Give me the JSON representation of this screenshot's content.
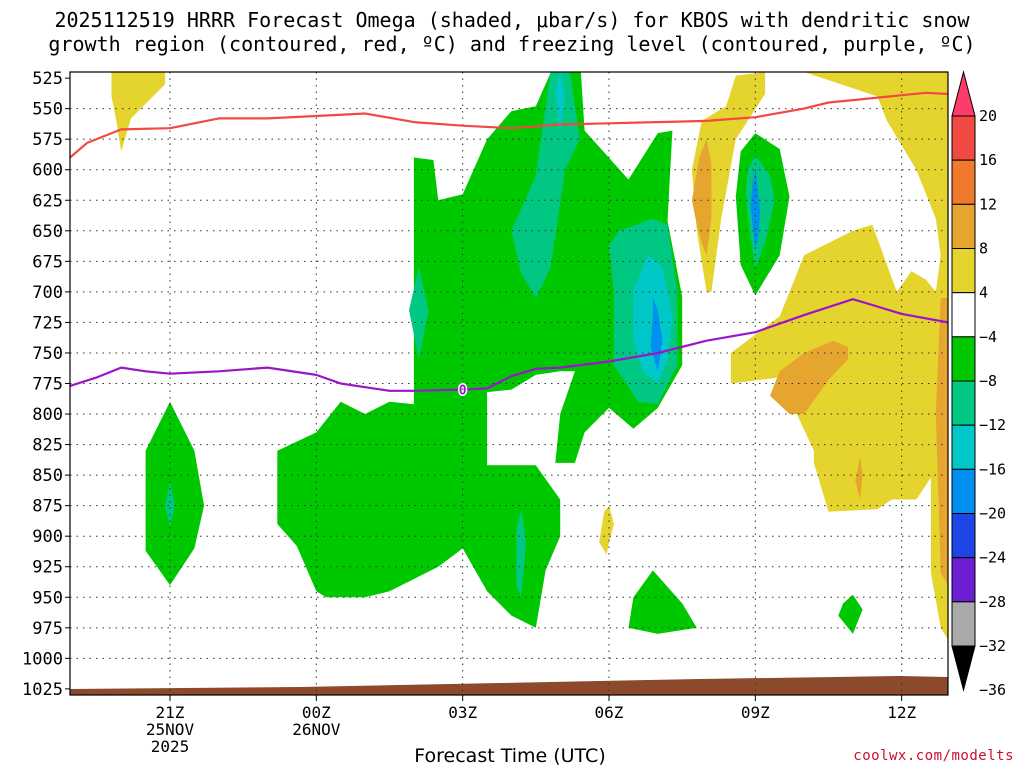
{
  "chart_data": {
    "type": "contour",
    "title_line1": "2025112519 HRRR Forecast Omega (shaded, μbar/s) for KBOS with dendritic snow",
    "title_line2": "growth region (contoured, red, ºC) and freezing level (contoured, purple, ºC)",
    "xlabel": "Forecast Time (UTC)",
    "y_ticks": [
      "525",
      "550",
      "575",
      "600",
      "625",
      "650",
      "675",
      "700",
      "725",
      "750",
      "775",
      "800",
      "825",
      "850",
      "875",
      "900",
      "925",
      "950",
      "975",
      "1000",
      "1025"
    ],
    "x_ticks": [
      {
        "hour": 2,
        "lines": [
          "21Z",
          "25NOV",
          "2025"
        ]
      },
      {
        "hour": 5,
        "lines": [
          "00Z",
          "26NOV"
        ]
      },
      {
        "hour": 8,
        "lines": [
          "03Z"
        ]
      },
      {
        "hour": 11,
        "lines": [
          "06Z"
        ]
      },
      {
        "hour": 14,
        "lines": [
          "09Z"
        ]
      },
      {
        "hour": 17,
        "lines": [
          "12Z"
        ]
      }
    ],
    "x_range": [
      -0.05,
      17.95
    ],
    "y_range": [
      520,
      1030
    ],
    "colorbar": {
      "labels": [
        "20",
        "16",
        "12",
        "8",
        "4",
        "−4",
        "−8",
        "−12",
        "−16",
        "−20",
        "−24",
        "−28",
        "−32",
        "−36"
      ],
      "colors": [
        "#ff3b6b",
        "#f04a42",
        "#f07a2c",
        "#e6a52e",
        "#e6d42e",
        "#ffffff",
        "#00c800",
        "#00c882",
        "#00c8c8",
        "#0091f0",
        "#1e46e6",
        "#6e1ed2",
        "#a00fc8",
        "#aaaaaa"
      ]
    },
    "dendritic_contour": {
      "label": "",
      "color": "#f04a42",
      "points": [
        [
          -0.05,
          590
        ],
        [
          0.3,
          578
        ],
        [
          1,
          567
        ],
        [
          2,
          566
        ],
        [
          2.5,
          562
        ],
        [
          3,
          558
        ],
        [
          3.5,
          558
        ],
        [
          4,
          558
        ],
        [
          5,
          556
        ],
        [
          6,
          554
        ],
        [
          7,
          561
        ],
        [
          8,
          564
        ],
        [
          9,
          566
        ],
        [
          10,
          563
        ],
        [
          11,
          562
        ],
        [
          12,
          561
        ],
        [
          13,
          560
        ],
        [
          14,
          557
        ],
        [
          15,
          550
        ],
        [
          15.5,
          545
        ],
        [
          16,
          543
        ],
        [
          17,
          539
        ],
        [
          17.5,
          537
        ],
        [
          17.95,
          538
        ]
      ]
    },
    "freezing_level": {
      "label": "0",
      "color": "#9a16c8",
      "points": [
        [
          -0.05,
          777
        ],
        [
          0.5,
          770
        ],
        [
          1,
          762
        ],
        [
          1.5,
          765
        ],
        [
          2,
          767
        ],
        [
          3,
          765
        ],
        [
          4,
          762
        ],
        [
          5,
          768
        ],
        [
          5.5,
          775
        ],
        [
          6,
          778
        ],
        [
          6.5,
          781
        ],
        [
          7,
          781
        ],
        [
          8,
          780
        ],
        [
          8.5,
          779
        ],
        [
          9,
          769
        ],
        [
          9.5,
          763
        ],
        [
          10,
          762
        ],
        [
          11,
          757
        ],
        [
          12,
          750
        ],
        [
          13,
          740
        ],
        [
          14,
          733
        ],
        [
          15,
          719
        ],
        [
          16,
          706
        ],
        [
          16.5,
          712
        ],
        [
          17,
          718
        ],
        [
          17.95,
          725
        ]
      ]
    },
    "terrain_color": "#8b4a2b",
    "omega_regions": [
      {
        "value": -6,
        "color": "#00c800",
        "points": [
          [
            2,
            790
          ],
          [
            2.5,
            830
          ],
          [
            2.7,
            875
          ],
          [
            2.5,
            910
          ],
          [
            2,
            940
          ],
          [
            1.5,
            912
          ],
          [
            1.5,
            875
          ],
          [
            1.5,
            830
          ]
        ]
      },
      {
        "value": -10,
        "color": "#00c882",
        "points": [
          [
            2,
            855
          ],
          [
            2.1,
            875
          ],
          [
            2,
            892
          ],
          [
            1.9,
            875
          ]
        ]
      },
      {
        "value": -6,
        "color": "#00c800",
        "points": [
          [
            4.2,
            830
          ],
          [
            5,
            815
          ],
          [
            5.5,
            790
          ],
          [
            6,
            800
          ],
          [
            6.5,
            790
          ],
          [
            7,
            792
          ],
          [
            7,
            590
          ],
          [
            7.4,
            592
          ],
          [
            7.5,
            625
          ],
          [
            8,
            620
          ],
          [
            8.5,
            575
          ],
          [
            9,
            552
          ],
          [
            9.5,
            548
          ],
          [
            9.9,
            512
          ],
          [
            10.4,
            505
          ],
          [
            10.5,
            568
          ],
          [
            11.4,
            608
          ],
          [
            12,
            570
          ],
          [
            12.3,
            568
          ],
          [
            12.2,
            642
          ],
          [
            12.5,
            704
          ],
          [
            12.5,
            760
          ],
          [
            12,
            795
          ],
          [
            11.5,
            812
          ],
          [
            11,
            795
          ],
          [
            10.5,
            815
          ],
          [
            10.3,
            840
          ],
          [
            9.9,
            840
          ],
          [
            10,
            800
          ],
          [
            10.3,
            765
          ],
          [
            10,
            765
          ],
          [
            9.5,
            768
          ],
          [
            9,
            780
          ],
          [
            8.5,
            782
          ],
          [
            8.5,
            842
          ],
          [
            9.5,
            842
          ],
          [
            10,
            870
          ],
          [
            10,
            900
          ],
          [
            9.7,
            928
          ],
          [
            9.5,
            975
          ],
          [
            9,
            965
          ],
          [
            8.5,
            945
          ],
          [
            8,
            910
          ],
          [
            7.5,
            925
          ],
          [
            7,
            935
          ],
          [
            6.5,
            945
          ],
          [
            6,
            950
          ],
          [
            5.2,
            950
          ],
          [
            5,
            945
          ],
          [
            4.6,
            908
          ],
          [
            4.2,
            890
          ]
        ]
      },
      {
        "value": -10,
        "color": "#00c882",
        "points": [
          [
            7.1,
            680
          ],
          [
            7.3,
            715
          ],
          [
            7.1,
            755
          ],
          [
            6.9,
            715
          ]
        ]
      },
      {
        "value": -10,
        "color": "#00c882",
        "points": [
          [
            9,
            650
          ],
          [
            9.5,
            605
          ],
          [
            9.8,
            520
          ],
          [
            10.2,
            520
          ],
          [
            10.4,
            575
          ],
          [
            10.1,
            600
          ],
          [
            9.8,
            680
          ],
          [
            9.5,
            705
          ],
          [
            9.2,
            685
          ]
        ]
      },
      {
        "value": -14,
        "color": "#00c8c8",
        "points": [
          [
            9.9,
            535
          ],
          [
            10,
            520
          ],
          [
            10.1,
            540
          ],
          [
            10,
            570
          ]
        ]
      },
      {
        "value": -10,
        "color": "#00c882",
        "points": [
          [
            11,
            662
          ],
          [
            11.2,
            650
          ],
          [
            11.9,
            640
          ],
          [
            12.2,
            645
          ],
          [
            12.4,
            700
          ],
          [
            12.4,
            760
          ],
          [
            12,
            792
          ],
          [
            11.6,
            790
          ],
          [
            11.1,
            760
          ],
          [
            11.1,
            700
          ]
        ]
      },
      {
        "value": -14,
        "color": "#00c8c8",
        "points": [
          [
            11.5,
            700
          ],
          [
            11.8,
            670
          ],
          [
            12.1,
            680
          ],
          [
            12.3,
            720
          ],
          [
            12.2,
            755
          ],
          [
            12,
            775
          ],
          [
            11.7,
            765
          ],
          [
            11.5,
            740
          ]
        ]
      },
      {
        "value": -18,
        "color": "#0091f0",
        "points": [
          [
            11.9,
            705
          ],
          [
            12,
            715
          ],
          [
            12.1,
            740
          ],
          [
            12,
            765
          ],
          [
            11.85,
            745
          ],
          [
            11.9,
            720
          ]
        ]
      },
      {
        "value": -10,
        "color": "#00c882",
        "points": [
          [
            9.1,
            895
          ],
          [
            9.2,
            878
          ],
          [
            9.3,
            905
          ],
          [
            9.2,
            950
          ],
          [
            9.1,
            940
          ]
        ]
      },
      {
        "value": -6,
        "color": "#00c800",
        "points": [
          [
            11.4,
            975
          ],
          [
            11.5,
            950
          ],
          [
            11.9,
            928
          ],
          [
            12.5,
            955
          ],
          [
            12.8,
            975
          ],
          [
            12,
            980
          ]
        ]
      },
      {
        "value": -6,
        "color": "#00c800",
        "points": [
          [
            13.6,
            622
          ],
          [
            13.7,
            585
          ],
          [
            14,
            570
          ],
          [
            14.5,
            583
          ],
          [
            14.7,
            622
          ],
          [
            14.5,
            670
          ],
          [
            14,
            703
          ],
          [
            13.7,
            678
          ]
        ]
      },
      {
        "value": -10,
        "color": "#00c882",
        "points": [
          [
            13.8,
            620
          ],
          [
            13.85,
            600
          ],
          [
            14,
            588
          ],
          [
            14.3,
            605
          ],
          [
            14.4,
            625
          ],
          [
            14.2,
            660
          ],
          [
            14,
            680
          ],
          [
            13.9,
            655
          ]
        ]
      },
      {
        "value": -16,
        "color": "#0091f0",
        "points": [
          [
            13.9,
            630
          ],
          [
            13.95,
            610
          ],
          [
            14,
            600
          ],
          [
            14.05,
            615
          ],
          [
            14.1,
            635
          ],
          [
            14.05,
            658
          ],
          [
            14,
            665
          ]
        ]
      },
      {
        "value": -6,
        "color": "#00c800",
        "points": [
          [
            15.7,
            965
          ],
          [
            15.8,
            955
          ],
          [
            16,
            948
          ],
          [
            16.2,
            960
          ],
          [
            16,
            980
          ],
          [
            15.9,
            975
          ]
        ]
      },
      {
        "value": 6,
        "color": "#e6d42e",
        "points": [
          [
            0.8,
            520
          ],
          [
            1.3,
            520
          ],
          [
            1.9,
            520
          ],
          [
            1.9,
            530
          ],
          [
            1.2,
            558
          ],
          [
            1,
            585
          ],
          [
            0.9,
            560
          ],
          [
            0.8,
            540
          ]
        ]
      },
      {
        "value": 6,
        "color": "#e6d42e",
        "points": [
          [
            12.7,
            600
          ],
          [
            12.9,
            560
          ],
          [
            13.4,
            548
          ],
          [
            13.6,
            523
          ],
          [
            14.2,
            520
          ],
          [
            14.2,
            538
          ],
          [
            13.6,
            575
          ],
          [
            13.3,
            640
          ],
          [
            13.1,
            700
          ],
          [
            13,
            700
          ],
          [
            12.8,
            650
          ]
        ]
      },
      {
        "value": 10,
        "color": "#e6a52e",
        "points": [
          [
            12.7,
            625
          ],
          [
            12.85,
            590
          ],
          [
            13,
            575
          ],
          [
            13.1,
            595
          ],
          [
            13.1,
            640
          ],
          [
            13,
            670
          ],
          [
            12.9,
            660
          ],
          [
            12.8,
            645
          ]
        ]
      },
      {
        "value": 6,
        "color": "#e6d42e",
        "points": [
          [
            15,
            520
          ],
          [
            17.95,
            520
          ],
          [
            17.95,
            985
          ],
          [
            17.8,
            975
          ],
          [
            17.6,
            930
          ],
          [
            17.6,
            852
          ],
          [
            17.3,
            870
          ],
          [
            16.8,
            870
          ],
          [
            16.5,
            878
          ],
          [
            15.5,
            880
          ],
          [
            15.2,
            840
          ],
          [
            15.2,
            830
          ],
          [
            14.5,
            770
          ],
          [
            13.5,
            775
          ],
          [
            13.5,
            750
          ],
          [
            14,
            735
          ],
          [
            14.5,
            720
          ],
          [
            14.8,
            690
          ],
          [
            15,
            670
          ],
          [
            15.5,
            660
          ],
          [
            16,
            650
          ],
          [
            16.4,
            645
          ],
          [
            16.9,
            700
          ],
          [
            17.2,
            683
          ],
          [
            17.5,
            690
          ],
          [
            17.7,
            700
          ],
          [
            17.8,
            670
          ],
          [
            17.7,
            640
          ],
          [
            17.3,
            600
          ],
          [
            16.7,
            560
          ],
          [
            16.5,
            540
          ]
        ]
      },
      {
        "value": 10,
        "color": "#e6a52e",
        "points": [
          [
            14.3,
            785
          ],
          [
            14.5,
            765
          ],
          [
            15,
            750
          ],
          [
            15.6,
            740
          ],
          [
            15.9,
            745
          ],
          [
            15.9,
            755
          ],
          [
            15.5,
            772
          ],
          [
            15,
            800
          ],
          [
            14.7,
            800
          ]
        ]
      },
      {
        "value": 10,
        "color": "#e6a52e",
        "points": [
          [
            16.05,
            855
          ],
          [
            16.15,
            835
          ],
          [
            16.2,
            850
          ],
          [
            16.15,
            870
          ]
        ]
      },
      {
        "value": 10,
        "color": "#e6a52e",
        "points": [
          [
            17.7,
            800
          ],
          [
            17.8,
            705
          ],
          [
            17.95,
            705
          ],
          [
            17.95,
            940
          ],
          [
            17.8,
            930
          ]
        ]
      },
      {
        "value": 6,
        "color": "#e6d42e",
        "points": [
          [
            10.8,
            905
          ],
          [
            10.9,
            880
          ],
          [
            11,
            875
          ],
          [
            11.1,
            890
          ],
          [
            11,
            905
          ],
          [
            10.95,
            915
          ]
        ]
      }
    ]
  },
  "xlabel": "Forecast Time (UTC)",
  "credit": "coolwx.com/modelts"
}
